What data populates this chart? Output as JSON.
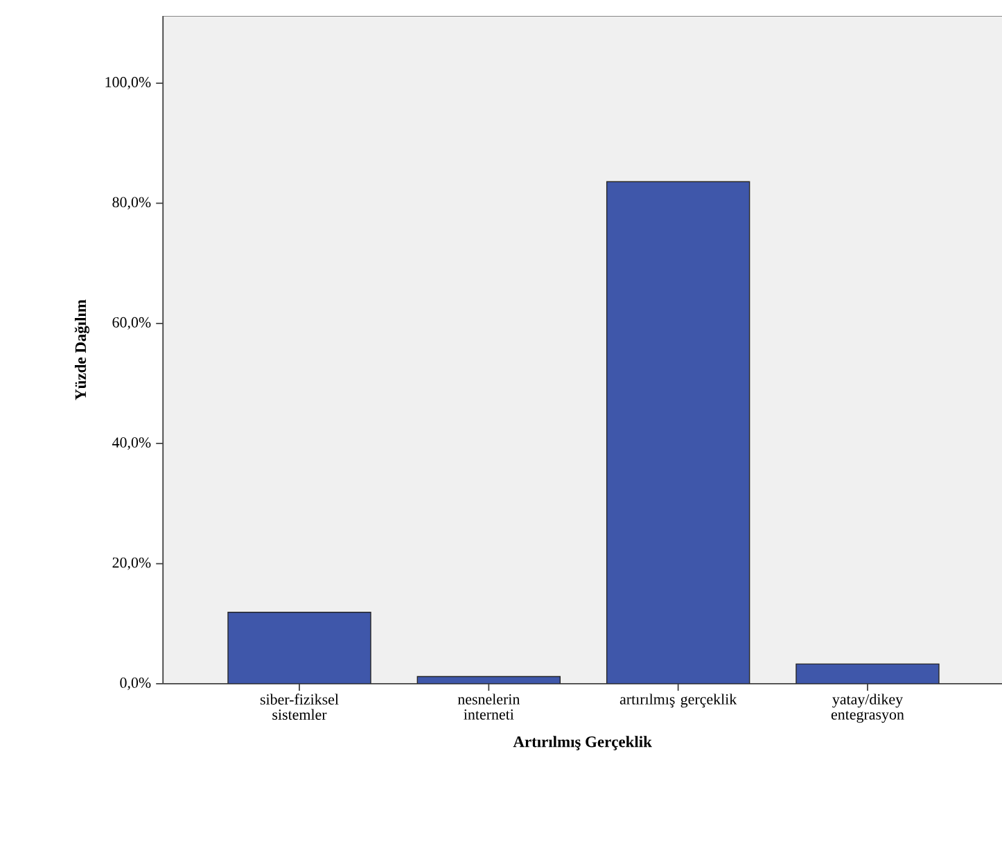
{
  "chart_data": {
    "type": "bar",
    "xlabel": "Artırılmış Gerçeklik",
    "ylabel": "Yüzde Dağılım",
    "categories": [
      "siber-fiziksel sistemler",
      "nesnelerin interneti",
      "artırılmış gerçeklik",
      "yatay/dikey entegrasyon"
    ],
    "values": [
      11.9,
      1.2,
      83.6,
      3.3
    ],
    "color": "#3f57aa",
    "ylim": [
      0,
      111.2
    ],
    "yticks": [
      {
        "value": 0,
        "label": "0,0%"
      },
      {
        "value": 20,
        "label": "20,0%"
      },
      {
        "value": 40,
        "label": "40,0%"
      },
      {
        "value": 60,
        "label": "60,0%"
      },
      {
        "value": 80,
        "label": "80,0%"
      },
      {
        "value": 100,
        "label": "100,0%"
      }
    ],
    "grid": false
  }
}
